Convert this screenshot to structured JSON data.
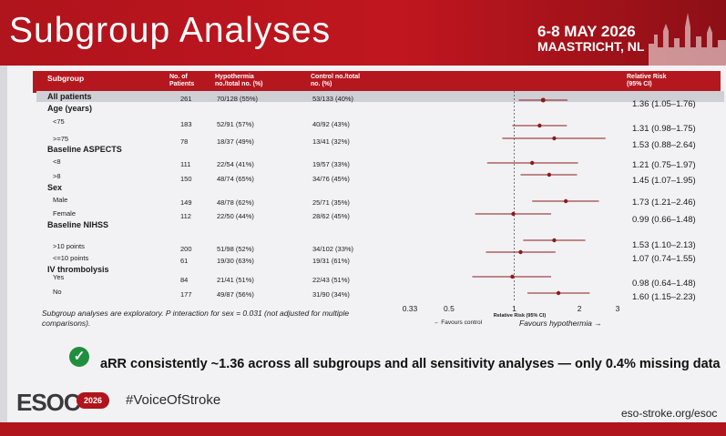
{
  "header": {
    "title": "Subgroup Analyses",
    "date": "6-8 MAY 2026",
    "place": "MAASTRICHT, NL"
  },
  "table": {
    "columns": {
      "subgroup": "Subgroup",
      "patients": "No. of Patients",
      "hypothermia": "Hypothermia no./total no. (%)",
      "control": "Control no./total no. (%)",
      "rr": "Relative Risk (95% CI)"
    },
    "rows": [
      {
        "label": "All patients",
        "n": "261",
        "hypo": "70/128 (55%)",
        "ctrl": "53/133 (40%)",
        "rr_text": "1.36 (1.05–1.76)"
      },
      {
        "label": "Age (years)"
      },
      {
        "label": "<75",
        "n": "183",
        "hypo": "52/91 (57%)",
        "ctrl": "40/92 (43%)",
        "rr_text": "1.31 (0.98–1.75)"
      },
      {
        "label": ">=75",
        "n": "78",
        "hypo": "18/37 (49%)",
        "ctrl": "13/41 (32%)",
        "rr_text": "1.53 (0.88–2.64)"
      },
      {
        "label": "Baseline ASPECTS"
      },
      {
        "label": "<8",
        "n": "111",
        "hypo": "22/54 (41%)",
        "ctrl": "19/57 (33%)",
        "rr_text": "1.21 (0.75–1.97)"
      },
      {
        "label": ">8",
        "n": "150",
        "hypo": "48/74 (65%)",
        "ctrl": "34/76 (45%)",
        "rr_text": "1.45 (1.07–1.95)"
      },
      {
        "label": "Sex"
      },
      {
        "label": "Male",
        "n": "149",
        "hypo": "48/78 (62%)",
        "ctrl": "25/71 (35%)",
        "rr_text": "1.73 (1.21–2.46)"
      },
      {
        "label": "Female",
        "n": "112",
        "hypo": "22/50 (44%)",
        "ctrl": "28/62 (45%)",
        "rr_text": "0.99 (0.66–1.48)"
      },
      {
        "label": "Baseline NIHSS"
      },
      {
        "label": ">10 points",
        "n": "200",
        "hypo": "51/98 (52%)",
        "ctrl": "34/102 (33%)",
        "rr_text": "1.53 (1.10–2.13)"
      },
      {
        "label": "<=10 points",
        "n": "61",
        "hypo": "19/30 (63%)",
        "ctrl": "19/31 (61%)",
        "rr_text": "1.07 (0.74–1.55)"
      },
      {
        "label": "IV thrombolysis"
      },
      {
        "label": "Yes",
        "n": "84",
        "hypo": "21/41 (51%)",
        "ctrl": "22/43 (51%)",
        "rr_text": "0.98 (0.64–1.48)"
      },
      {
        "label": "No",
        "n": "177",
        "hypo": "49/87 (56%)",
        "ctrl": "31/90 (34%)",
        "rr_text": "1.60 (1.15–2.23)"
      }
    ]
  },
  "chart_data": {
    "type": "scatter",
    "scale": "log",
    "xlim": [
      0.33,
      3
    ],
    "ticks": [
      "0.33",
      "0.5",
      "1",
      "2",
      "3"
    ],
    "xlabel": "Relative Risk (95% CI)",
    "left_label": "← Favours control",
    "right_label": "Favours hypothermia →",
    "series": [
      {
        "rr": 1.36,
        "lo": 1.05,
        "hi": 1.76
      },
      {
        "rr": 1.31,
        "lo": 0.98,
        "hi": 1.75
      },
      {
        "rr": 1.53,
        "lo": 0.88,
        "hi": 2.64
      },
      {
        "rr": 1.21,
        "lo": 0.75,
        "hi": 1.97
      },
      {
        "rr": 1.45,
        "lo": 1.07,
        "hi": 1.95
      },
      {
        "rr": 1.73,
        "lo": 1.21,
        "hi": 2.46
      },
      {
        "rr": 0.99,
        "lo": 0.66,
        "hi": 1.48
      },
      {
        "rr": 1.53,
        "lo": 1.1,
        "hi": 2.13
      },
      {
        "rr": 1.07,
        "lo": 0.74,
        "hi": 1.55
      },
      {
        "rr": 0.98,
        "lo": 0.64,
        "hi": 1.48
      },
      {
        "rr": 1.6,
        "lo": 1.15,
        "hi": 2.23
      }
    ],
    "colors": {
      "marker": "#8b1a1a",
      "ref_line": "#555555"
    }
  },
  "note": "Subgroup analyses are exploratory. P interaction for sex = 0.031 (not adjusted for multiple comparisons).",
  "callout": "aRR consistently ~1.36 across all subgroups and all sensitivity analyses — only 0.4% missing data",
  "footer": {
    "logo_text": "ESOC",
    "badge": "2026",
    "hashtag": "#VoiceOfStroke",
    "url": "eso-stroke.org/esoc"
  }
}
